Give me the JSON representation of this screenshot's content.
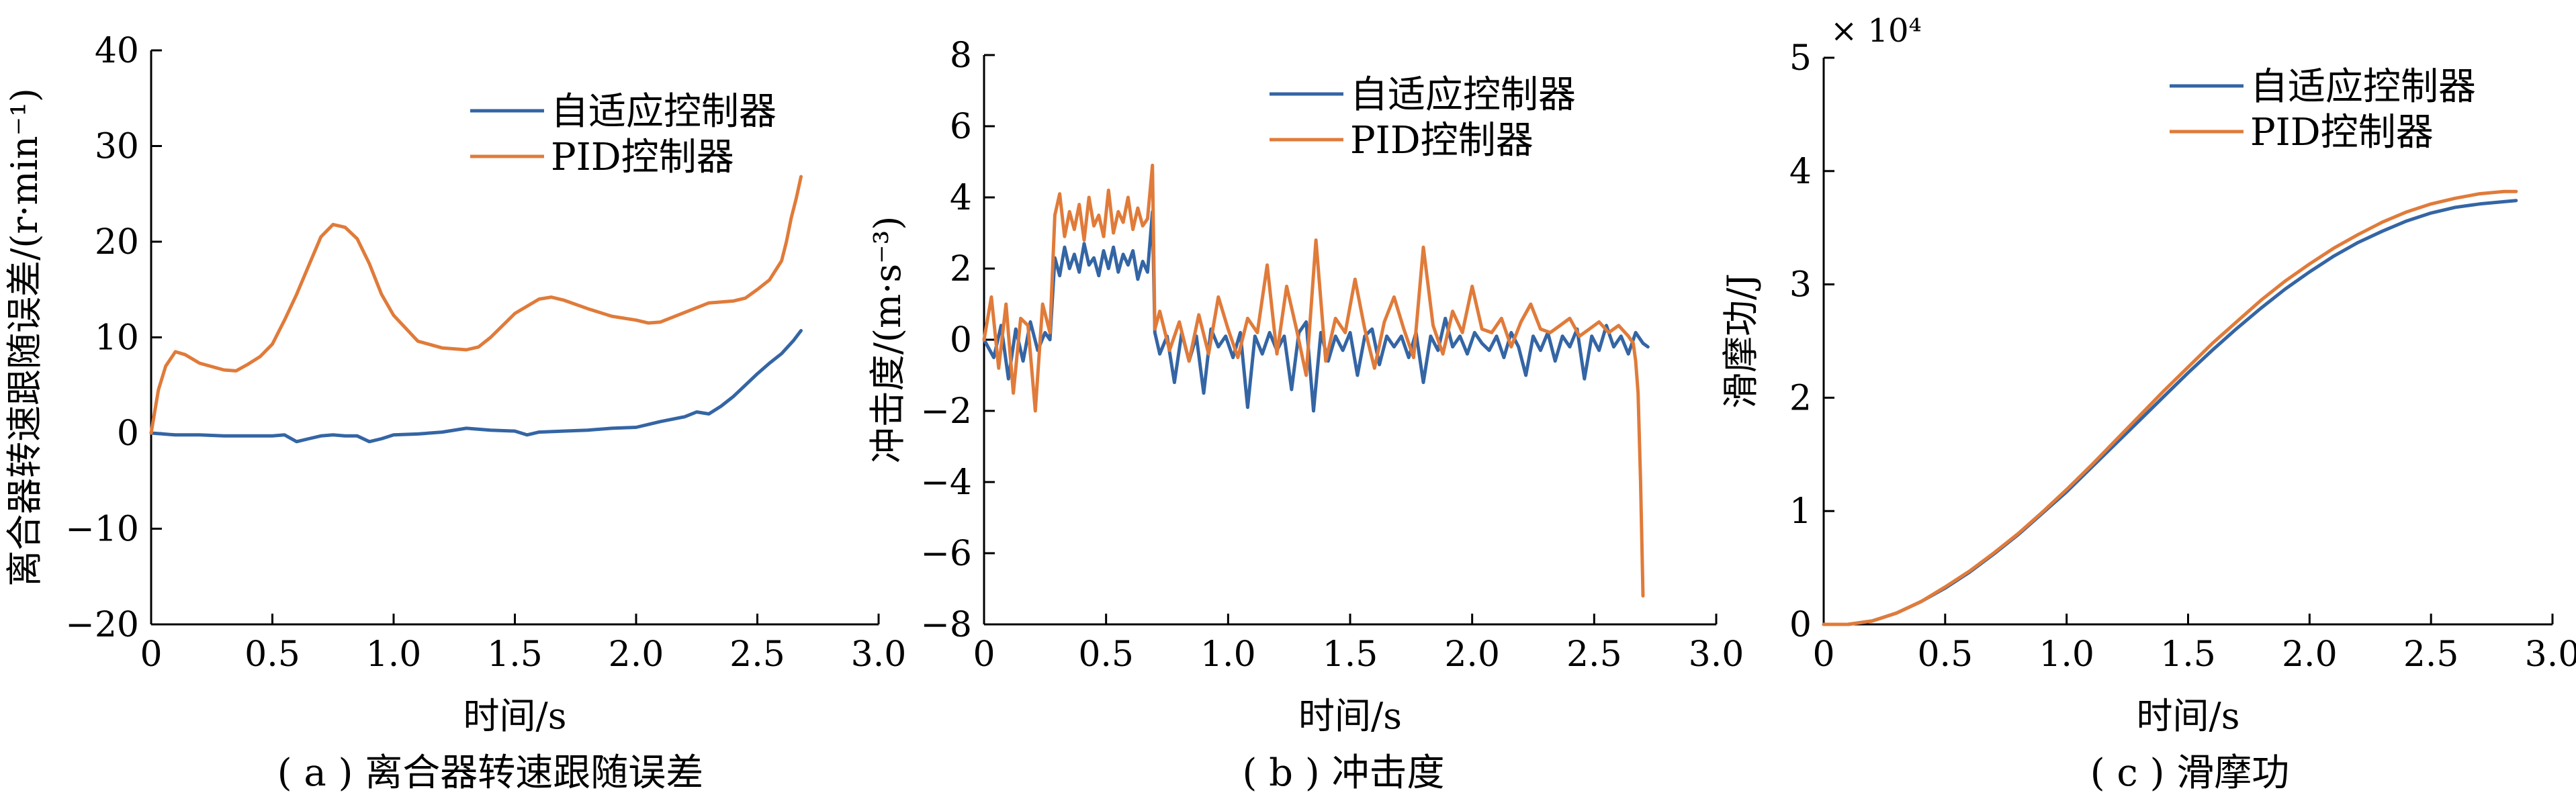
{
  "colors": {
    "series1": "#3465a4",
    "series2": "#e07b3a",
    "axis": "#000000"
  },
  "chart_data": [
    {
      "type": "line",
      "caption": "( a ) 离合器转速跟随误差",
      "xlabel": "时间/s",
      "ylabel": "离合器转速跟随误差/(r·min⁻¹)",
      "xlim": [
        0,
        3.0
      ],
      "ylim": [
        -20,
        40
      ],
      "xticks": [
        "0",
        "0.5",
        "1.0",
        "1.5",
        "2.0",
        "2.5",
        "3.0"
      ],
      "yticks": [
        "−20",
        "−10",
        "0",
        "10",
        "20",
        "30",
        "40"
      ],
      "legend_position": "top-right",
      "series": [
        {
          "name": "自适应控制器",
          "x": [
            0,
            0.05,
            0.1,
            0.2,
            0.3,
            0.4,
            0.5,
            0.55,
            0.6,
            0.65,
            0.7,
            0.75,
            0.8,
            0.85,
            0.9,
            0.95,
            1.0,
            1.1,
            1.2,
            1.3,
            1.4,
            1.5,
            1.55,
            1.6,
            1.7,
            1.8,
            1.9,
            2.0,
            2.1,
            2.2,
            2.25,
            2.3,
            2.35,
            2.4,
            2.45,
            2.5,
            2.55,
            2.6,
            2.65,
            2.68
          ],
          "y": [
            0,
            -0.1,
            -0.2,
            -0.2,
            -0.3,
            -0.3,
            -0.3,
            -0.2,
            -0.9,
            -0.6,
            -0.3,
            -0.2,
            -0.3,
            -0.3,
            -0.9,
            -0.6,
            -0.2,
            -0.1,
            0.1,
            0.5,
            0.3,
            0.2,
            -0.2,
            0.1,
            0.2,
            0.3,
            0.5,
            0.6,
            1.2,
            1.7,
            2.2,
            2.0,
            2.8,
            3.8,
            5.0,
            6.2,
            7.3,
            8.3,
            9.7,
            10.7
          ]
        },
        {
          "name": "PID控制器",
          "x": [
            0,
            0.03,
            0.06,
            0.1,
            0.14,
            0.2,
            0.3,
            0.35,
            0.4,
            0.45,
            0.5,
            0.55,
            0.6,
            0.65,
            0.7,
            0.75,
            0.8,
            0.85,
            0.9,
            0.95,
            1.0,
            1.1,
            1.2,
            1.3,
            1.35,
            1.4,
            1.5,
            1.6,
            1.65,
            1.7,
            1.8,
            1.9,
            2.0,
            2.05,
            2.1,
            2.2,
            2.3,
            2.4,
            2.45,
            2.5,
            2.55,
            2.6,
            2.62,
            2.64,
            2.66,
            2.68
          ],
          "y": [
            0,
            4.5,
            7.0,
            8.5,
            8.2,
            7.3,
            6.6,
            6.5,
            7.2,
            8.0,
            9.3,
            11.8,
            14.5,
            17.5,
            20.5,
            21.8,
            21.5,
            20.3,
            17.7,
            14.5,
            12.3,
            9.6,
            8.9,
            8.7,
            9.0,
            10.0,
            12.5,
            14.0,
            14.2,
            13.9,
            13.0,
            12.2,
            11.8,
            11.5,
            11.6,
            12.6,
            13.6,
            13.8,
            14.1,
            15.0,
            16.0,
            18.0,
            20.0,
            22.5,
            24.5,
            26.8
          ]
        }
      ]
    },
    {
      "type": "line",
      "caption": "( b ) 冲击度",
      "xlabel": "时间/s",
      "ylabel": "冲击度/(m·s⁻³)",
      "xlim": [
        0,
        3.0
      ],
      "ylim": [
        -8,
        8
      ],
      "xticks": [
        "0",
        "0.5",
        "1.0",
        "1.5",
        "2.0",
        "2.5",
        "3.0"
      ],
      "yticks": [
        "−8",
        "−6",
        "−4",
        "−2",
        "0",
        "2",
        "4",
        "6",
        "8"
      ],
      "legend_position": "top-right",
      "series": [
        {
          "name": "自适应控制器",
          "x": [
            0,
            0.04,
            0.07,
            0.1,
            0.13,
            0.16,
            0.19,
            0.22,
            0.25,
            0.27,
            0.29,
            0.31,
            0.33,
            0.35,
            0.37,
            0.39,
            0.41,
            0.43,
            0.45,
            0.47,
            0.49,
            0.51,
            0.53,
            0.55,
            0.57,
            0.59,
            0.61,
            0.63,
            0.65,
            0.67,
            0.69,
            0.7,
            0.72,
            0.75,
            0.78,
            0.81,
            0.84,
            0.87,
            0.9,
            0.93,
            0.96,
            0.99,
            1.02,
            1.05,
            1.08,
            1.11,
            1.14,
            1.17,
            1.2,
            1.23,
            1.26,
            1.29,
            1.32,
            1.35,
            1.38,
            1.41,
            1.44,
            1.47,
            1.5,
            1.53,
            1.56,
            1.59,
            1.62,
            1.65,
            1.68,
            1.71,
            1.74,
            1.77,
            1.8,
            1.83,
            1.86,
            1.89,
            1.92,
            1.95,
            1.98,
            2.01,
            2.04,
            2.07,
            2.1,
            2.13,
            2.16,
            2.19,
            2.22,
            2.25,
            2.28,
            2.31,
            2.34,
            2.37,
            2.4,
            2.43,
            2.46,
            2.49,
            2.52,
            2.55,
            2.58,
            2.61,
            2.64,
            2.67,
            2.7,
            2.72
          ],
          "y": [
            0,
            -0.5,
            0.4,
            -1.1,
            0.3,
            -0.6,
            0.5,
            -0.3,
            0.2,
            0.0,
            2.3,
            1.8,
            2.6,
            2.0,
            2.4,
            1.9,
            2.7,
            2.1,
            2.3,
            1.8,
            2.5,
            2.0,
            2.6,
            1.9,
            2.4,
            2.1,
            2.5,
            1.7,
            2.2,
            1.9,
            3.6,
            0.2,
            -0.4,
            0.1,
            -1.2,
            0.2,
            -0.6,
            0.1,
            -1.5,
            0.3,
            -0.2,
            0.1,
            -0.5,
            0.2,
            -1.9,
            0.1,
            -0.4,
            0.2,
            -0.3,
            0.1,
            -1.4,
            0.2,
            0.5,
            -2.0,
            0.2,
            -0.6,
            0.1,
            -0.3,
            0.2,
            -1.0,
            0.1,
            0.3,
            -0.7,
            0.1,
            -0.2,
            0.1,
            -0.5,
            0.2,
            -1.2,
            0.1,
            -0.3,
            0.6,
            -0.2,
            0.1,
            -0.4,
            0.2,
            -0.1,
            -0.3,
            0.1,
            -0.5,
            0.2,
            -0.2,
            -1.0,
            0.1,
            -0.3,
            0.2,
            -0.6,
            0.1,
            -0.2,
            0.3,
            -1.1,
            0.1,
            -0.3,
            0.4,
            -0.2,
            0.1,
            -0.4,
            0.2,
            -0.1,
            -0.2
          ]
        },
        {
          "name": "PID控制器",
          "x": [
            0,
            0.03,
            0.06,
            0.09,
            0.12,
            0.15,
            0.18,
            0.21,
            0.24,
            0.27,
            0.29,
            0.31,
            0.33,
            0.35,
            0.37,
            0.39,
            0.41,
            0.43,
            0.45,
            0.47,
            0.49,
            0.51,
            0.53,
            0.55,
            0.57,
            0.59,
            0.61,
            0.63,
            0.65,
            0.67,
            0.69,
            0.7,
            0.72,
            0.76,
            0.8,
            0.84,
            0.88,
            0.92,
            0.96,
            1.0,
            1.04,
            1.08,
            1.12,
            1.16,
            1.2,
            1.24,
            1.28,
            1.32,
            1.36,
            1.4,
            1.44,
            1.48,
            1.52,
            1.56,
            1.6,
            1.64,
            1.68,
            1.72,
            1.76,
            1.8,
            1.84,
            1.88,
            1.92,
            1.96,
            2.0,
            2.04,
            2.08,
            2.12,
            2.16,
            2.2,
            2.24,
            2.28,
            2.32,
            2.36,
            2.4,
            2.44,
            2.48,
            2.52,
            2.56,
            2.6,
            2.64,
            2.66,
            2.67,
            2.68,
            2.69,
            2.7
          ],
          "y": [
            0,
            1.2,
            -0.8,
            1.0,
            -1.5,
            0.6,
            0.4,
            -2.0,
            1.0,
            0.2,
            3.5,
            4.1,
            2.9,
            3.6,
            3.1,
            3.8,
            2.8,
            4.0,
            3.2,
            3.5,
            2.9,
            4.2,
            3.0,
            3.6,
            3.3,
            4.0,
            3.1,
            3.7,
            3.2,
            3.4,
            4.9,
            0.3,
            0.8,
            -0.3,
            0.5,
            -0.6,
            0.7,
            -0.4,
            1.2,
            0.3,
            -0.5,
            0.6,
            0.2,
            2.1,
            -0.4,
            1.5,
            0.3,
            -1.0,
            2.8,
            -0.6,
            0.6,
            0.2,
            1.7,
            0.3,
            -0.8,
            0.5,
            1.2,
            0.3,
            -0.5,
            2.6,
            0.4,
            -0.4,
            0.8,
            0.2,
            1.5,
            0.3,
            0.2,
            0.6,
            -0.2,
            0.5,
            1.0,
            0.3,
            0.2,
            0.4,
            0.6,
            0.1,
            0.3,
            0.5,
            0.2,
            0.4,
            0.1,
            -0.1,
            -0.6,
            -1.5,
            -4.0,
            -7.2
          ]
        }
      ]
    },
    {
      "type": "line",
      "caption": "( c ) 滑摩功",
      "xlabel": "时间/s",
      "ylabel": "滑摩功/J",
      "xlim": [
        0,
        3.0
      ],
      "ylim": [
        0,
        5
      ],
      "y_multiplier": "× 10⁴",
      "xticks": [
        "0",
        "0.5",
        "1.0",
        "1.5",
        "2.0",
        "2.5",
        "3.0"
      ],
      "yticks": [
        "0",
        "1",
        "2",
        "3",
        "4",
        "5"
      ],
      "legend_position": "top-right",
      "series": [
        {
          "name": "自适应控制器",
          "x": [
            0,
            0.1,
            0.2,
            0.3,
            0.4,
            0.5,
            0.6,
            0.7,
            0.8,
            0.9,
            1.0,
            1.1,
            1.2,
            1.3,
            1.4,
            1.5,
            1.6,
            1.7,
            1.8,
            1.9,
            2.0,
            2.1,
            2.2,
            2.3,
            2.4,
            2.5,
            2.6,
            2.7,
            2.8,
            2.85
          ],
          "y": [
            0,
            0,
            0.03,
            0.1,
            0.2,
            0.32,
            0.46,
            0.62,
            0.79,
            0.98,
            1.17,
            1.38,
            1.59,
            1.8,
            2.01,
            2.22,
            2.42,
            2.61,
            2.79,
            2.96,
            3.11,
            3.25,
            3.37,
            3.47,
            3.56,
            3.63,
            3.68,
            3.71,
            3.73,
            3.74
          ]
        },
        {
          "name": "PID控制器",
          "x": [
            0,
            0.1,
            0.2,
            0.3,
            0.4,
            0.5,
            0.6,
            0.7,
            0.8,
            0.9,
            1.0,
            1.1,
            1.2,
            1.3,
            1.4,
            1.5,
            1.6,
            1.7,
            1.8,
            1.9,
            2.0,
            2.1,
            2.2,
            2.3,
            2.4,
            2.5,
            2.6,
            2.7,
            2.8,
            2.85
          ],
          "y": [
            0,
            0,
            0.03,
            0.1,
            0.2,
            0.33,
            0.47,
            0.63,
            0.8,
            0.99,
            1.19,
            1.4,
            1.62,
            1.84,
            2.06,
            2.27,
            2.48,
            2.67,
            2.86,
            3.03,
            3.18,
            3.32,
            3.44,
            3.55,
            3.64,
            3.71,
            3.76,
            3.8,
            3.82,
            3.82
          ]
        }
      ]
    }
  ]
}
